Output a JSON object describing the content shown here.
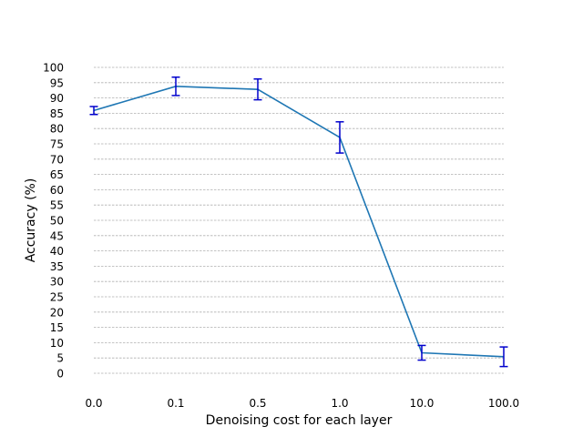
{
  "chart_data": {
    "type": "line",
    "title": "",
    "xlabel": "Denoising cost for each layer",
    "ylabel": "Accuracy (%)",
    "categories": [
      "0.0",
      "0.1",
      "0.5",
      "1.0",
      "10.0",
      "100.0"
    ],
    "series": [
      {
        "values": [
          85.9,
          93.8,
          92.8,
          77.1,
          6.7,
          5.4
        ],
        "errors": [
          1.3,
          3.0,
          3.4,
          5.1,
          2.4,
          3.2
        ],
        "line_color": "#1f77b4",
        "error_color": "#0000cc"
      }
    ],
    "ylim": [
      0,
      100
    ],
    "yticks": [
      0,
      5,
      10,
      15,
      20,
      25,
      30,
      35,
      40,
      45,
      50,
      55,
      60,
      65,
      70,
      75,
      80,
      85,
      90,
      95,
      100
    ],
    "grid": "horizontal",
    "legend": "none"
  }
}
